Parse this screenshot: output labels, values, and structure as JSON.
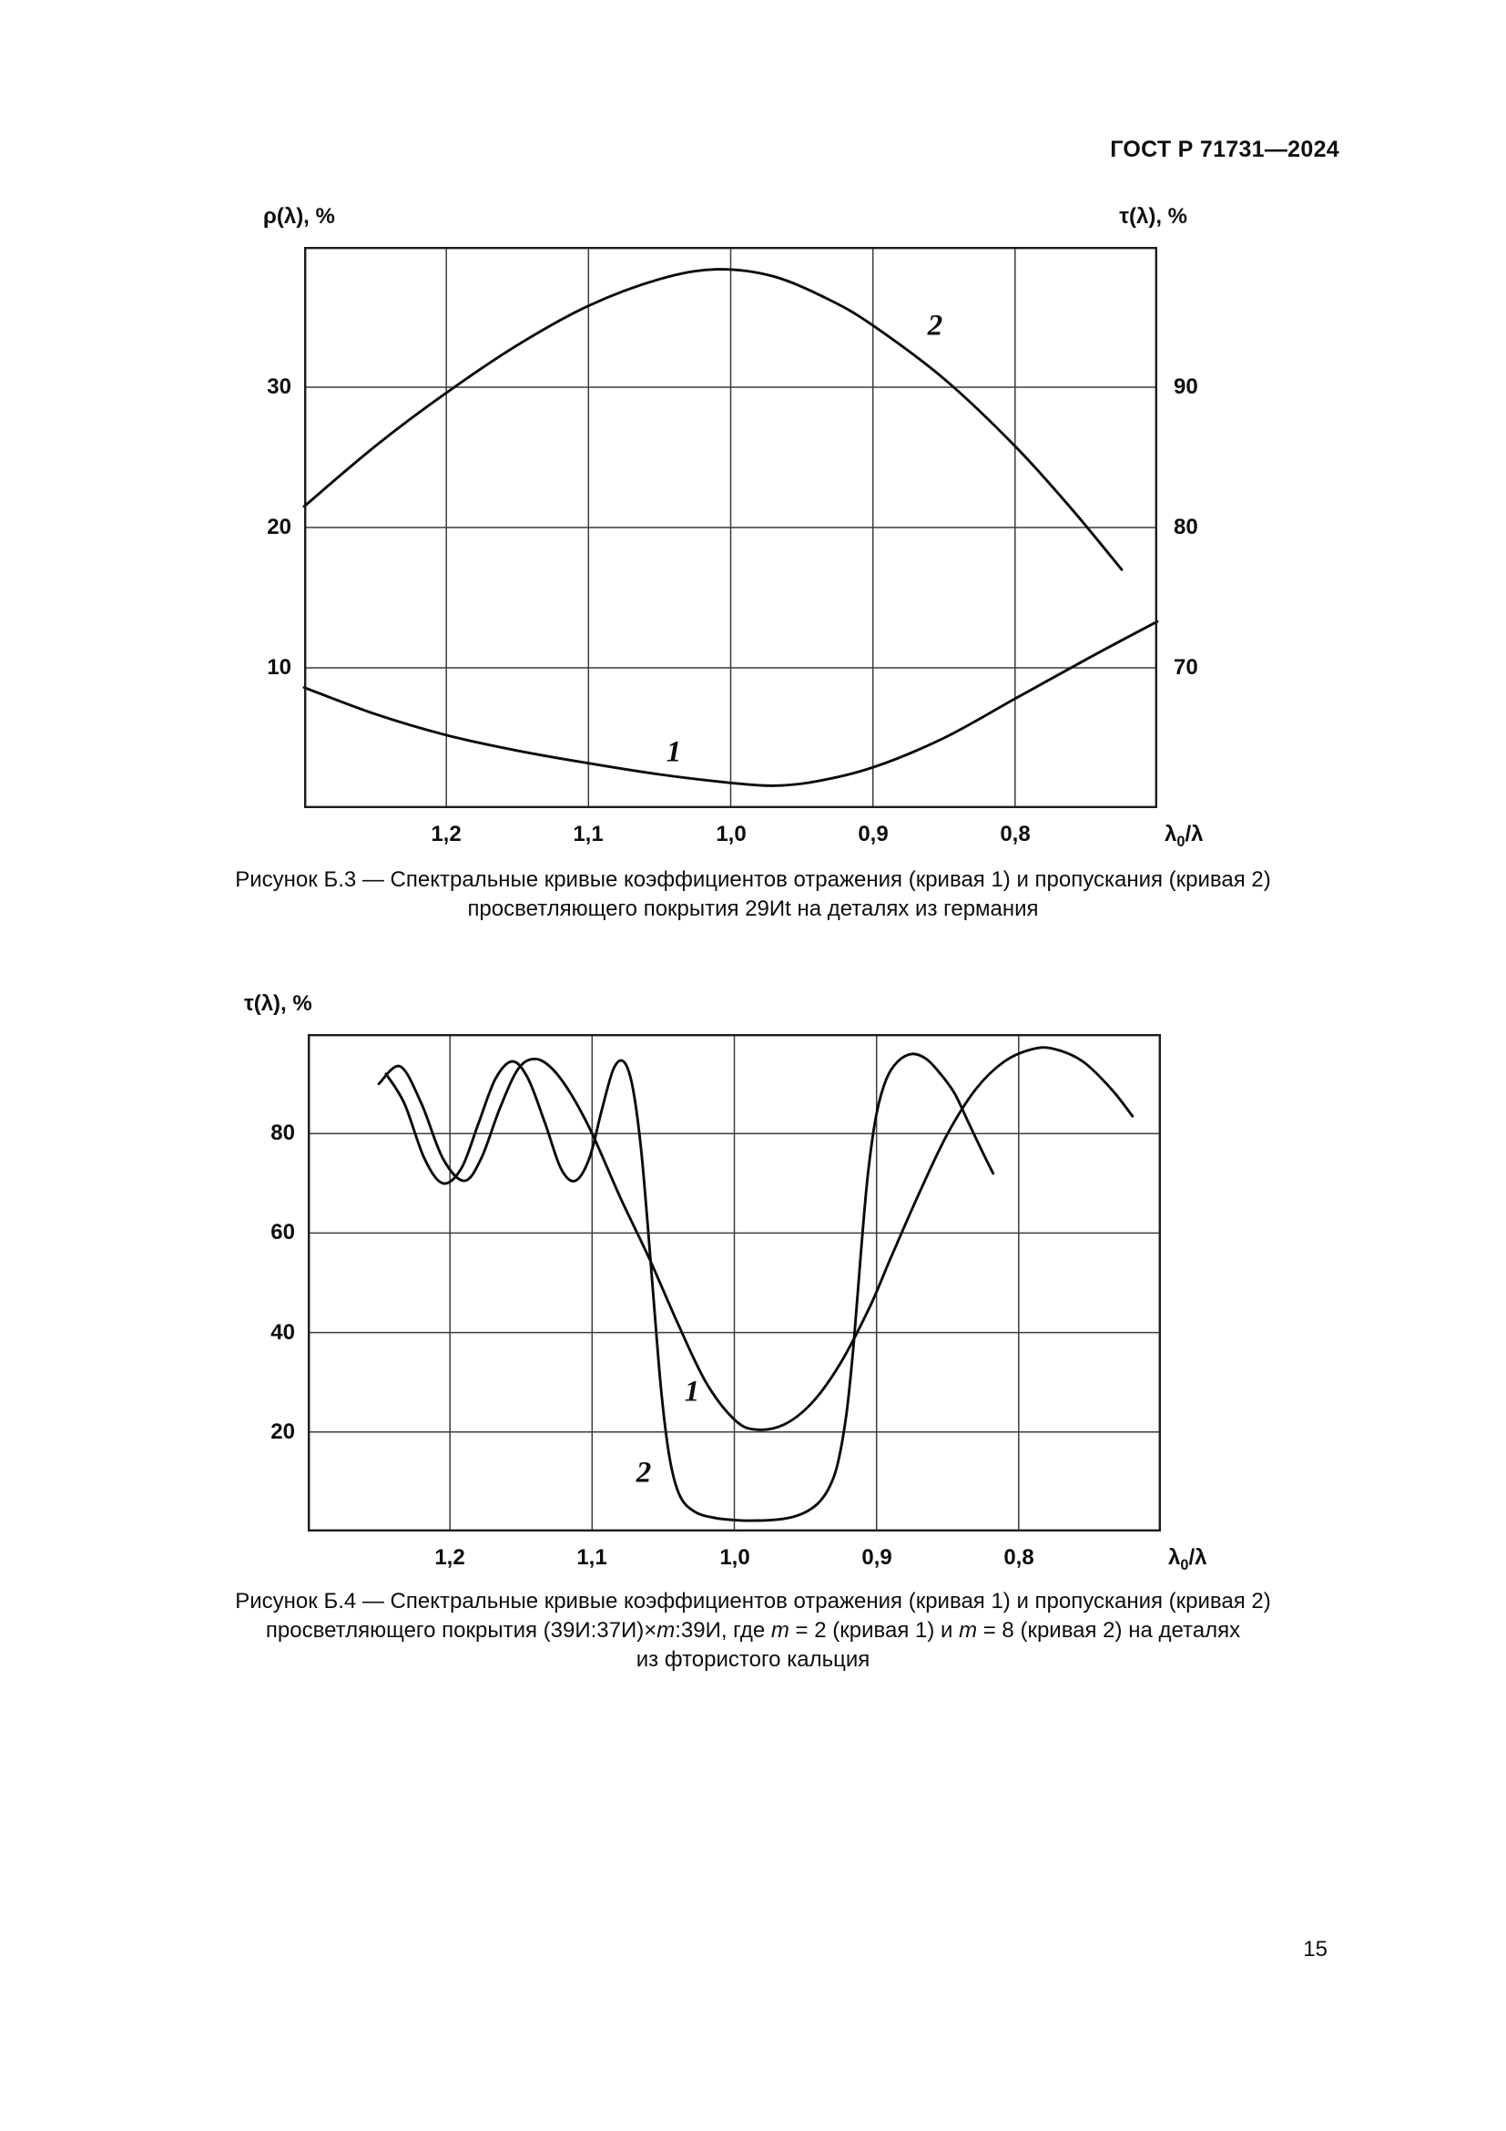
{
  "page": {
    "header": "ГОСТ Р 71731—2024",
    "page_number": "15"
  },
  "figure1": {
    "left_axis_title": "ρ(λ), %",
    "right_axis_title": "τ(λ), %",
    "left_ticks": [
      "30",
      "20",
      "10"
    ],
    "right_ticks": [
      "90",
      "80",
      "70"
    ],
    "x_ticks": [
      "1,2",
      "1,1",
      "1,0",
      "0,9",
      "0,8"
    ],
    "x_title_lambda": "λ",
    "x_title_sub": "0",
    "x_title_rest": "/λ",
    "label_curve1": "1",
    "label_curve2": "2",
    "caption_line1": "Рисунок Б.3  — Спектральные кривые коэффициентов отражения (кривая 1) и пропускания (кривая 2)",
    "caption_line2": "просветляющего покрытия 29Иt на деталях из германия"
  },
  "figure2": {
    "y_axis_title": "τ(λ), %",
    "y_ticks": [
      "80",
      "60",
      "40",
      "20"
    ],
    "x_ticks": [
      "1,2",
      "1,1",
      "1,0",
      "0,9",
      "0,8"
    ],
    "x_title_lambda": "λ",
    "x_title_sub": "0",
    "x_title_rest": "/λ",
    "label_curve1": "1",
    "label_curve2": "2",
    "caption_line1": "Рисунок Б.4  — Спектральные кривые коэффициентов отражения (кривая 1) и пропускания (кривая 2)",
    "caption_line2_parts": [
      "просветляющего покрытия (39И:37И)×",
      "m",
      ":39И, где ",
      "m",
      " = 2 (кривая 1) и ",
      "m",
      " = 8 (кривая 2) на деталях"
    ],
    "caption_line3": "из фтористого кальция"
  },
  "chart_data": [
    {
      "type": "line",
      "title": "Спектральные кривые коэффициентов отражения (кривая 1) и пропускания (кривая 2) просветляющего покрытия 29Иt на деталях из германия",
      "x_label": "λ0/λ",
      "x_direction": "decreasing",
      "x_range": [
        1.3,
        0.7
      ],
      "x_ticks": [
        1.2,
        1.1,
        1.0,
        0.9,
        0.8
      ],
      "grid": true,
      "left_axis": {
        "label": "ρ(λ), %",
        "range": [
          0,
          40
        ],
        "ticks": [
          30,
          20,
          10
        ]
      },
      "right_axis": {
        "label": "τ(λ), %",
        "range": [
          60,
          100
        ],
        "ticks": [
          90,
          80,
          70
        ]
      },
      "series": [
        {
          "name": "кривая 1 — коэффициент отражения ρ(λ)",
          "label": "1",
          "axis": "left",
          "points": [
            [
              1.3,
              8.6
            ],
            [
              1.25,
              6.7
            ],
            [
              1.2,
              5.2
            ],
            [
              1.15,
              4.1
            ],
            [
              1.1,
              3.2
            ],
            [
              1.05,
              2.4
            ],
            [
              1.0,
              1.8
            ],
            [
              0.97,
              1.6
            ],
            [
              0.94,
              1.9
            ],
            [
              0.9,
              2.9
            ],
            [
              0.85,
              5.0
            ],
            [
              0.8,
              7.8
            ],
            [
              0.75,
              10.6
            ],
            [
              0.7,
              13.3
            ]
          ]
        },
        {
          "name": "кривая 2 — коэффициент пропускания τ(λ)",
          "label": "2",
          "axis": "right",
          "points": [
            [
              1.3,
              81.5
            ],
            [
              1.25,
              85.8
            ],
            [
              1.2,
              89.6
            ],
            [
              1.15,
              93.0
            ],
            [
              1.1,
              95.8
            ],
            [
              1.05,
              97.7
            ],
            [
              1.01,
              98.4
            ],
            [
              0.97,
              97.9
            ],
            [
              0.93,
              96.2
            ],
            [
              0.9,
              94.4
            ],
            [
              0.85,
              90.6
            ],
            [
              0.8,
              85.8
            ],
            [
              0.76,
              81.3
            ],
            [
              0.725,
              77.0
            ]
          ]
        }
      ]
    },
    {
      "type": "line",
      "title": "Спектральные кривые коэффициентов отражения (кривая 1) и пропускания (кривая 2) просветляющего покрытия (39И:37И)×m:39И, где m = 2 (кривая 1) и m = 8 (кривая 2) на деталях из фтористого кальция",
      "x_label": "λ0/λ",
      "x_direction": "decreasing",
      "x_range": [
        1.3,
        0.7
      ],
      "x_ticks": [
        1.2,
        1.1,
        1.0,
        0.9,
        0.8
      ],
      "grid": true,
      "y_axis": {
        "label": "τ(λ), %",
        "range": [
          0,
          100
        ],
        "ticks": [
          80,
          60,
          40,
          20
        ]
      },
      "series": [
        {
          "name": "кривая 1 (m = 2)",
          "label": "1",
          "axis": "y",
          "points": [
            [
              1.25,
              90
            ],
            [
              1.235,
              93.5
            ],
            [
              1.22,
              86
            ],
            [
              1.205,
              75
            ],
            [
              1.19,
              70.5
            ],
            [
              1.178,
              75
            ],
            [
              1.165,
              85
            ],
            [
              1.152,
              93
            ],
            [
              1.14,
              95
            ],
            [
              1.128,
              93
            ],
            [
              1.115,
              88
            ],
            [
              1.1,
              80
            ],
            [
              1.08,
              67
            ],
            [
              1.06,
              55
            ],
            [
              1.04,
              42
            ],
            [
              1.02,
              30
            ],
            [
              1.0,
              22.5
            ],
            [
              0.985,
              20.5
            ],
            [
              0.965,
              21.5
            ],
            [
              0.945,
              26
            ],
            [
              0.925,
              34
            ],
            [
              0.905,
              45
            ],
            [
              0.89,
              55
            ],
            [
              0.87,
              68
            ],
            [
              0.85,
              80
            ],
            [
              0.83,
              89
            ],
            [
              0.81,
              94.5
            ],
            [
              0.79,
              97
            ],
            [
              0.775,
              97
            ],
            [
              0.755,
              94.5
            ],
            [
              0.735,
              89
            ],
            [
              0.72,
              83.5
            ]
          ]
        },
        {
          "name": "кривая 2 (m = 8)",
          "label": "2",
          "axis": "y",
          "points": [
            [
              1.245,
              92
            ],
            [
              1.232,
              86
            ],
            [
              1.218,
              75
            ],
            [
              1.205,
              70
            ],
            [
              1.192,
              73
            ],
            [
              1.18,
              82
            ],
            [
              1.168,
              91
            ],
            [
              1.156,
              94.5
            ],
            [
              1.145,
              91
            ],
            [
              1.133,
              82
            ],
            [
              1.122,
              73
            ],
            [
              1.112,
              70.5
            ],
            [
              1.102,
              75
            ],
            [
              1.093,
              85
            ],
            [
              1.085,
              93
            ],
            [
              1.078,
              94.5
            ],
            [
              1.072,
              90
            ],
            [
              1.066,
              78
            ],
            [
              1.061,
              62
            ],
            [
              1.056,
              44
            ],
            [
              1.051,
              27
            ],
            [
              1.045,
              14
            ],
            [
              1.038,
              7
            ],
            [
              1.028,
              4
            ],
            [
              1.015,
              2.8
            ],
            [
              1.0,
              2.3
            ],
            [
              0.985,
              2.2
            ],
            [
              0.97,
              2.4
            ],
            [
              0.958,
              3
            ],
            [
              0.948,
              4.2
            ],
            [
              0.94,
              6
            ],
            [
              0.933,
              9
            ],
            [
              0.927,
              14
            ],
            [
              0.921,
              24
            ],
            [
              0.916,
              38
            ],
            [
              0.911,
              56
            ],
            [
              0.906,
              72
            ],
            [
              0.9,
              84
            ],
            [
              0.893,
              91
            ],
            [
              0.885,
              94.5
            ],
            [
              0.875,
              96
            ],
            [
              0.865,
              95
            ],
            [
              0.855,
              92
            ],
            [
              0.845,
              88
            ],
            [
              0.835,
              82
            ],
            [
              0.825,
              76
            ],
            [
              0.818,
              72
            ]
          ]
        }
      ]
    }
  ]
}
